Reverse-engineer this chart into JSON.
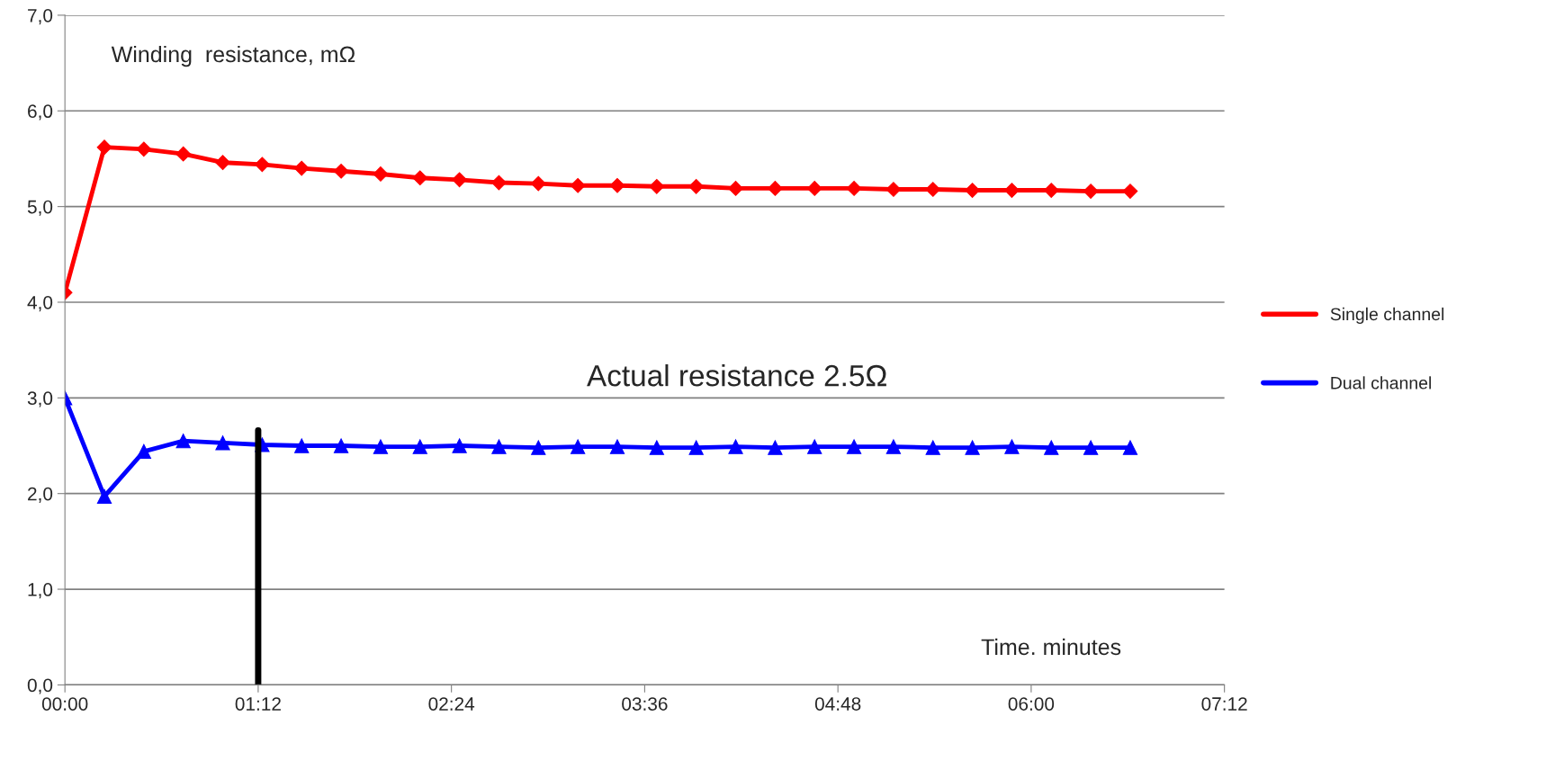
{
  "chart_data": {
    "type": "line",
    "ylabel": "Winding  resistance, mΩ",
    "xlabel": "Time. minutes",
    "x": [
      0,
      0.245,
      0.49,
      0.735,
      0.98,
      1.225,
      1.47,
      1.715,
      1.96,
      2.205,
      2.45,
      2.695,
      2.94,
      3.185,
      3.43,
      3.675,
      3.92,
      4.165,
      4.41,
      4.655,
      4.9,
      5.145,
      5.39,
      5.635,
      5.88,
      6.125,
      6.37,
      6.615
    ],
    "series": [
      {
        "name": "Single channel",
        "color": "#ff0000",
        "marker": "diamond",
        "values": [
          4.1,
          5.62,
          5.6,
          5.55,
          5.46,
          5.44,
          5.4,
          5.37,
          5.34,
          5.3,
          5.28,
          5.25,
          5.24,
          5.22,
          5.22,
          5.21,
          5.21,
          5.19,
          5.19,
          5.19,
          5.19,
          5.18,
          5.18,
          5.17,
          5.17,
          5.17,
          5.16,
          5.16
        ]
      },
      {
        "name": "Dual channel",
        "color": "#0000ff",
        "marker": "triangle",
        "values": [
          3.0,
          1.97,
          2.44,
          2.55,
          2.53,
          2.51,
          2.5,
          2.5,
          2.49,
          2.49,
          2.5,
          2.49,
          2.48,
          2.49,
          2.49,
          2.48,
          2.48,
          2.49,
          2.48,
          2.49,
          2.49,
          2.49,
          2.48,
          2.48,
          2.49,
          2.48,
          2.48,
          2.48
        ]
      }
    ],
    "xlim": [
      0,
      7.2
    ],
    "xticks": [
      {
        "value": 0,
        "label": "00:00"
      },
      {
        "value": 1.2,
        "label": "01:12"
      },
      {
        "value": 2.4,
        "label": "02:24"
      },
      {
        "value": 3.6,
        "label": "03:36"
      },
      {
        "value": 4.8,
        "label": "04:48"
      },
      {
        "value": 6.0,
        "label": "06:00"
      },
      {
        "value": 7.2,
        "label": "07:12"
      }
    ],
    "ylim": [
      0,
      7
    ],
    "yticks": [
      {
        "value": 0,
        "label": "0,0"
      },
      {
        "value": 1,
        "label": "1,0"
      },
      {
        "value": 2,
        "label": "2,0"
      },
      {
        "value": 3,
        "label": "3,0"
      },
      {
        "value": 4,
        "label": "4,0"
      },
      {
        "value": 5,
        "label": "5,0"
      },
      {
        "value": 6,
        "label": "6,0"
      },
      {
        "value": 7,
        "label": "7,0"
      }
    ],
    "ref_lines": [
      {
        "axis": "x",
        "value": 1.2,
        "color": "#000000"
      }
    ],
    "annotations": [
      "Actual resistance 2.5Ω"
    ],
    "grid": "y",
    "legend": "right"
  }
}
